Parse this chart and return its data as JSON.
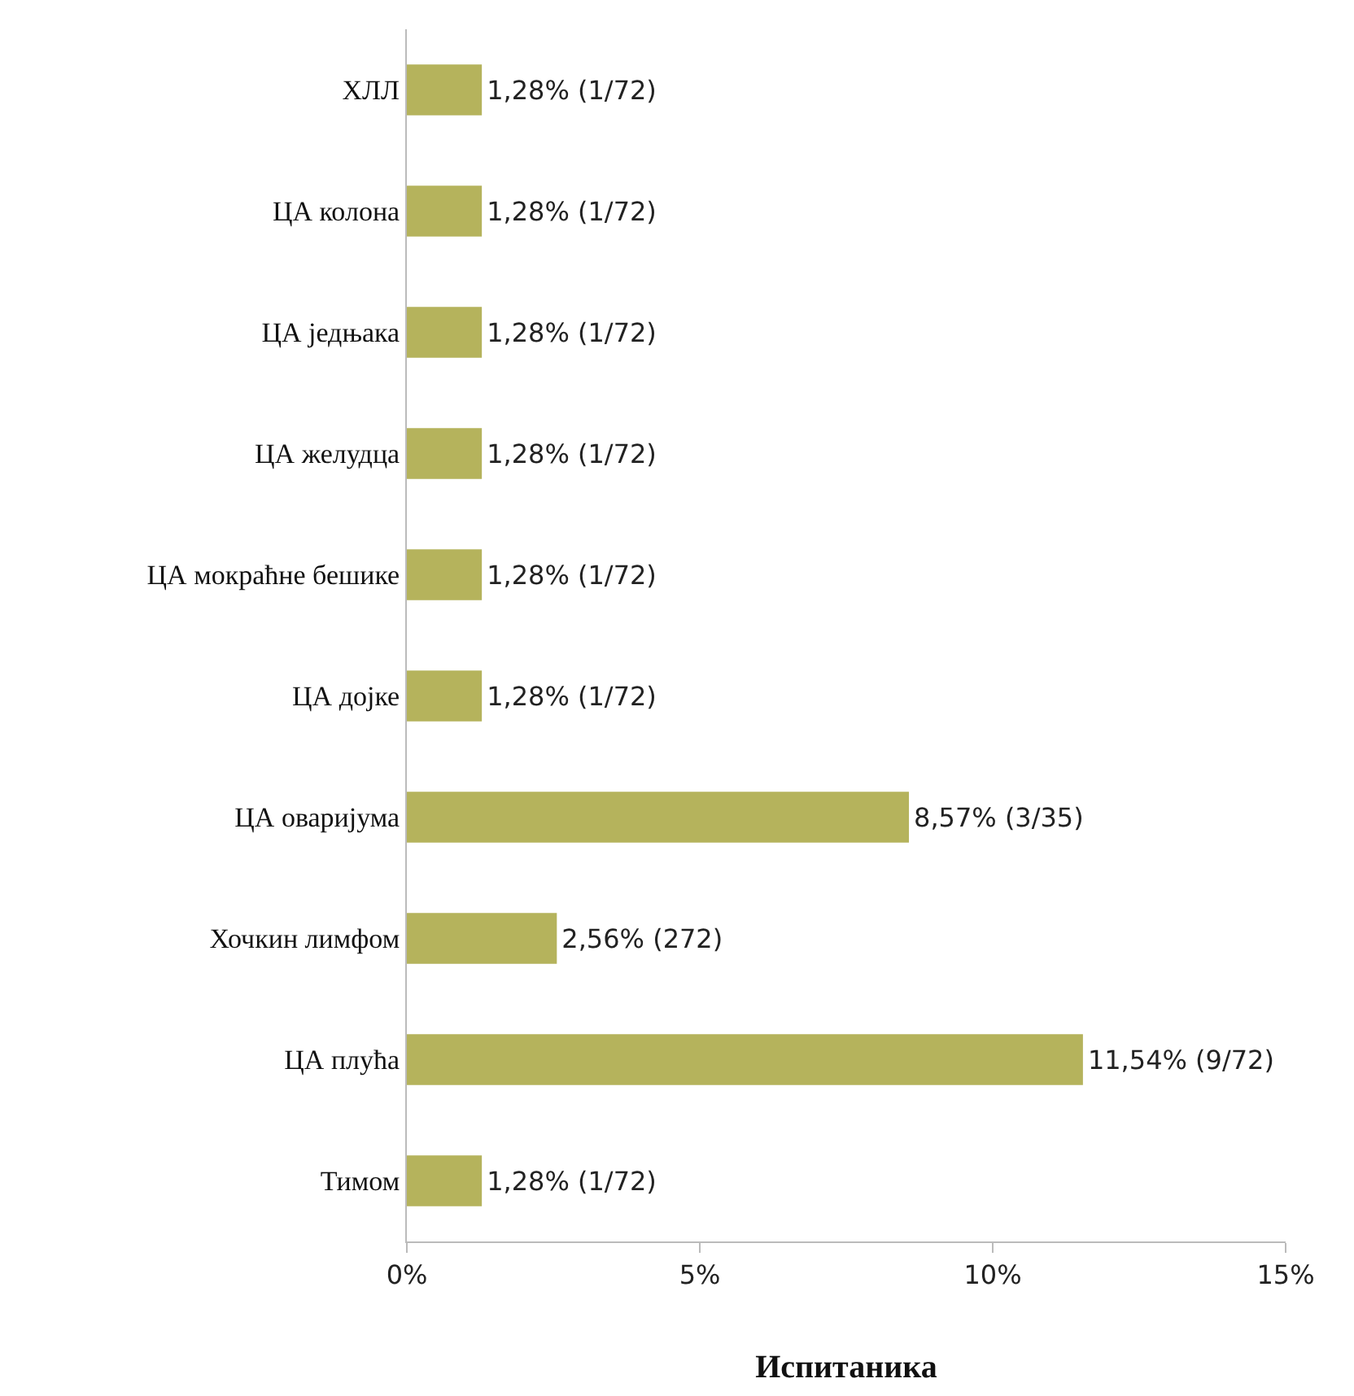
{
  "chart_data": {
    "type": "bar",
    "orientation": "horizontal",
    "xlabel": "Испитаника",
    "categories": [
      "ХЛЛ",
      "ЦА колона",
      "ЦА једњака",
      "ЦА желудца",
      "ЦА мокраћне бешике",
      "ЦА дојке",
      "ЦА оваријума",
      "Хочкин лимфом",
      "ЦА плућа",
      "Тимом"
    ],
    "values": [
      1.28,
      1.28,
      1.28,
      1.28,
      1.28,
      1.28,
      8.57,
      2.56,
      11.54,
      1.28
    ],
    "value_labels": [
      "1,28% (1/72)",
      "1,28% (1/72)",
      "1,28% (1/72)",
      "1,28% (1/72)",
      "1,28% (1/72)",
      "1,28% (1/72)",
      "8,57% (3/35)",
      "2,56% (272)",
      "11,54% (9/72)",
      "1,28% (1/72)"
    ],
    "color": "#b5b35c",
    "xlim": [
      0,
      15
    ],
    "xticks": [
      {
        "value": 0,
        "label": "0%"
      },
      {
        "value": 5,
        "label": "5%"
      },
      {
        "value": 10,
        "label": "10%"
      },
      {
        "value": 15,
        "label": "15%"
      }
    ],
    "grid": false
  }
}
